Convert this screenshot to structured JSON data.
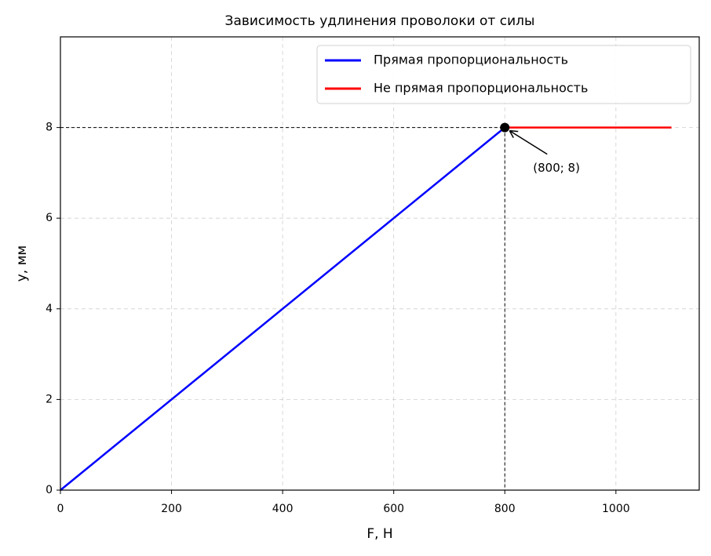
{
  "chart_data": {
    "type": "line",
    "title": "Зависимость удлинения проволоки от силы",
    "x_label": "F, Н",
    "y_label": "y, мм",
    "series": [
      {
        "name": "Прямая пропорциональность",
        "color": "#0000ff",
        "x": [
          0,
          800
        ],
        "values": [
          0,
          8
        ]
      },
      {
        "name": "Не прямая пропорциональность",
        "color": "#ff0000",
        "x": [
          800,
          1100
        ],
        "values": [
          8,
          8
        ]
      }
    ],
    "annotation": {
      "text": "(800; 8)",
      "x": 800,
      "y": 8
    },
    "xlim": [
      0,
      1150
    ],
    "xticks": [
      0,
      200,
      400,
      600,
      800,
      1000
    ],
    "ylim": [
      0,
      10
    ],
    "yticks": [
      0,
      2,
      4,
      6,
      8
    ],
    "grid": true,
    "legend": "upper right"
  }
}
